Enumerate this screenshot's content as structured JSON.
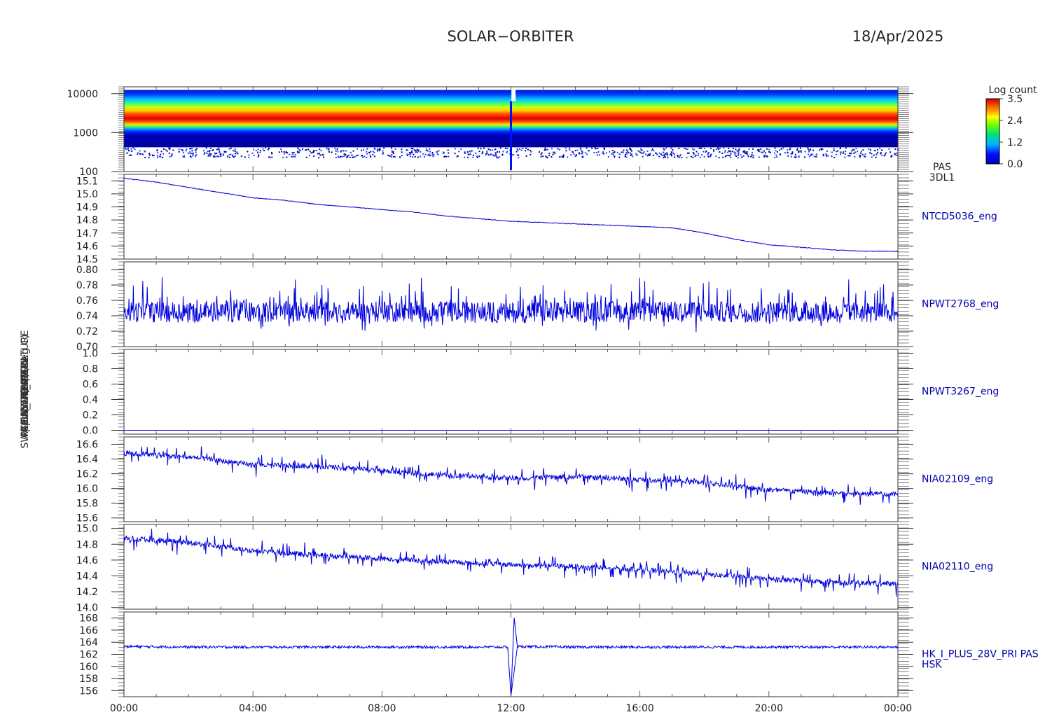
{
  "header": {
    "title": "SOLAR−ORBITER",
    "date": "18/Apr/2025"
  },
  "colorbar": {
    "label": "Log count",
    "ticks": [
      "3.5",
      "2.4",
      "1.2",
      "0.0"
    ],
    "range": [
      0.0,
      3.5
    ]
  },
  "chart_data": [
    {
      "type": "heatmap",
      "panel": 1,
      "ylabel": "(eV)",
      "ylog": true,
      "ylim": [
        100,
        15000
      ],
      "ytick_labels": [
        "10000",
        "1000",
        "100"
      ],
      "right_labels": [
        "PAS",
        "3DL1"
      ],
      "colorbar_label": "Log count",
      "zlim": [
        0.0,
        3.5
      ],
      "peak_energy_band_eV": [
        1500,
        3000
      ],
      "x": [
        "00:00",
        "04:00",
        "08:00",
        "12:00",
        "16:00",
        "20:00",
        "00:00"
      ],
      "data_gap_at": "12:05"
    },
    {
      "type": "line",
      "panel": 2,
      "ylabel": "Approx Temp (Deg C)",
      "ylim": [
        14.5,
        15.15
      ],
      "ytick_labels": [
        "15.1",
        "15.0",
        "14.9",
        "14.8",
        "14.7",
        "14.6",
        "14.5"
      ],
      "series": [
        {
          "name": "NTCD5036_eng",
          "color": "#0000dd",
          "x": [
            0,
            1,
            2,
            3,
            4,
            5,
            6,
            7,
            8,
            9,
            10,
            11,
            12,
            13,
            14,
            15,
            16,
            17,
            18,
            19,
            20,
            21,
            22,
            23,
            24
          ],
          "y": [
            15.12,
            15.09,
            15.05,
            15.01,
            14.97,
            14.95,
            14.92,
            14.9,
            14.88,
            14.86,
            14.83,
            14.81,
            14.79,
            14.78,
            14.77,
            14.76,
            14.75,
            14.74,
            14.7,
            14.65,
            14.61,
            14.59,
            14.57,
            14.56,
            14.56
          ]
        }
      ]
    },
    {
      "type": "line",
      "panel": 3,
      "ylabel": "SWA-EAS-TEMPERATURE",
      "ylim": [
        0.7,
        0.81
      ],
      "ytick_labels": [
        "0.80",
        "0.78",
        "0.76",
        "0.74",
        "0.72",
        "0.70"
      ],
      "series": [
        {
          "name": "NPWT2768_eng",
          "color": "#0000dd",
          "x": [
            0,
            2,
            4,
            6,
            8,
            10,
            12,
            14,
            16,
            18,
            20,
            22,
            24
          ],
          "y": [
            0.745,
            0.745,
            0.745,
            0.745,
            0.745,
            0.745,
            0.744,
            0.745,
            0.745,
            0.745,
            0.745,
            0.745,
            0.744
          ],
          "noise_range": [
            0.715,
            0.8
          ]
        }
      ]
    },
    {
      "type": "line",
      "panel": 4,
      "ylabel": "SWA-PAS-",
      "ylim": [
        -0.05,
        1.05
      ],
      "ytick_labels": [
        "1.0",
        "0.8",
        "0.6",
        "0.4",
        "0.2",
        "0.0"
      ],
      "series": [
        {
          "name": "NPWT3267_eng",
          "color": "#0000dd",
          "x": [
            0,
            24
          ],
          "y": [
            0.0,
            0.0
          ]
        }
      ]
    },
    {
      "type": "line",
      "panel": 5,
      "ylabel": "RPW_THERMAL",
      "ylim": [
        15.55,
        16.7
      ],
      "ytick_labels": [
        "16.6",
        "16.4",
        "16.2",
        "16.0",
        "15.8",
        "15.6"
      ],
      "series": [
        {
          "name": "NIA02109_eng",
          "color": "#0000dd",
          "x": [
            0,
            2,
            4,
            6,
            8,
            10,
            12,
            14,
            16,
            18,
            20,
            22,
            24
          ],
          "y": [
            16.48,
            16.43,
            16.32,
            16.3,
            16.24,
            16.18,
            16.14,
            16.16,
            16.12,
            16.08,
            15.98,
            15.94,
            15.92
          ]
        }
      ]
    },
    {
      "type": "line",
      "panel": 6,
      "ylabel": "PCDM_HK_IMON",
      "ylim": [
        13.98,
        15.05
      ],
      "ytick_labels": [
        "15.0",
        "14.8",
        "14.6",
        "14.4",
        "14.2",
        "14.0"
      ],
      "series": [
        {
          "name": "NIA02110_eng",
          "color": "#0000dd",
          "x": [
            0,
            2,
            4,
            6,
            8,
            10,
            12,
            14,
            16,
            18,
            20,
            22,
            24
          ],
          "y": [
            14.88,
            14.82,
            14.72,
            14.66,
            14.62,
            14.58,
            14.54,
            14.52,
            14.48,
            14.42,
            14.36,
            14.32,
            14.3
          ]
        }
      ]
    },
    {
      "type": "line",
      "panel": 7,
      "ylabel": "(mA)",
      "ylim": [
        155,
        169
      ],
      "ytick_labels": [
        "168",
        "166",
        "164",
        "162",
        "160",
        "158",
        "156"
      ],
      "right_labels": [
        "HK_I_PLUS_28V_PRI PAS",
        "HSK"
      ],
      "series": [
        {
          "name": "HK_I_PLUS_28V_PRI PAS",
          "color": "#0000dd",
          "x": [
            0,
            2,
            4,
            6,
            8,
            10,
            11.9,
            12.0,
            12.1,
            12.2,
            14,
            16,
            18,
            20,
            22,
            24
          ],
          "y": [
            163.3,
            163.2,
            163.2,
            163.2,
            163.2,
            163.2,
            163.2,
            155.2,
            168.0,
            163.3,
            163.2,
            163.2,
            163.2,
            163.2,
            163.2,
            163.2
          ]
        }
      ]
    }
  ],
  "x_axis": {
    "tick_labels": [
      "00:00",
      "04:00",
      "08:00",
      "12:00",
      "16:00",
      "20:00",
      "00:00"
    ]
  },
  "left_axis_labels_overlapped": [
    "(eV)",
    "Approx Temp (Deg C)",
    "SWA-EAS-TEMPERATURE",
    "SWA-PAS-",
    "RPW_THERMAL",
    "PCDM_HK_IMON",
    "(mA)"
  ]
}
